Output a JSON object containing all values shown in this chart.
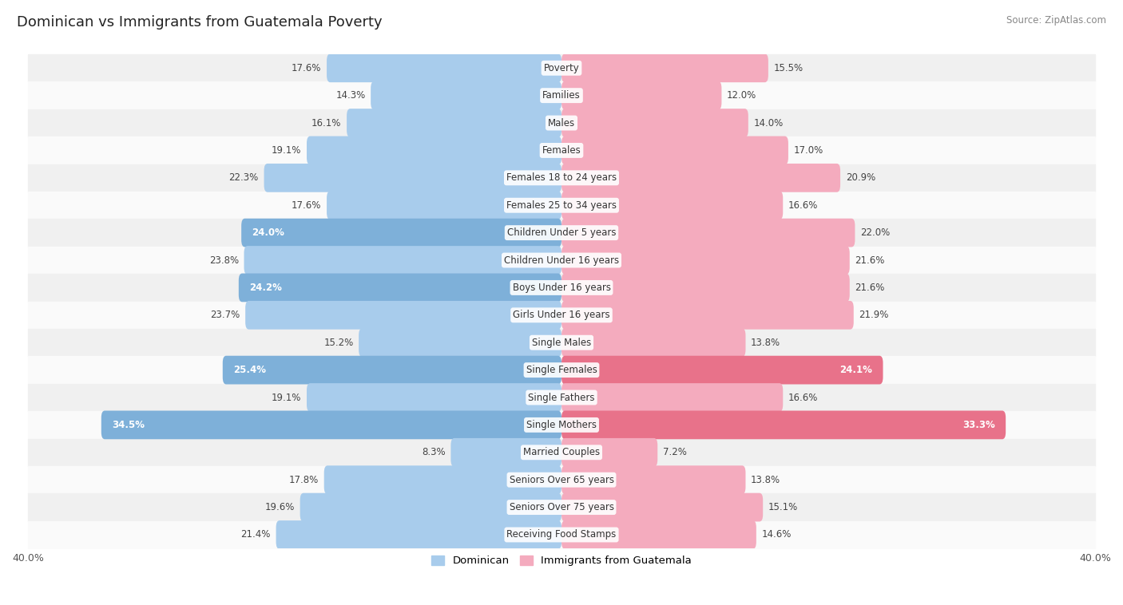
{
  "title": "Dominican vs Immigrants from Guatemala Poverty",
  "source": "Source: ZipAtlas.com",
  "categories": [
    "Poverty",
    "Families",
    "Males",
    "Females",
    "Females 18 to 24 years",
    "Females 25 to 34 years",
    "Children Under 5 years",
    "Children Under 16 years",
    "Boys Under 16 years",
    "Girls Under 16 years",
    "Single Males",
    "Single Females",
    "Single Fathers",
    "Single Mothers",
    "Married Couples",
    "Seniors Over 65 years",
    "Seniors Over 75 years",
    "Receiving Food Stamps"
  ],
  "dominican": [
    17.6,
    14.3,
    16.1,
    19.1,
    22.3,
    17.6,
    24.0,
    23.8,
    24.2,
    23.7,
    15.2,
    25.4,
    19.1,
    34.5,
    8.3,
    17.8,
    19.6,
    21.4
  ],
  "guatemala": [
    15.5,
    12.0,
    14.0,
    17.0,
    20.9,
    16.6,
    22.0,
    21.6,
    21.6,
    21.9,
    13.8,
    24.1,
    16.6,
    33.3,
    7.2,
    13.8,
    15.1,
    14.6
  ],
  "dominican_highlighted": [
    6,
    8,
    11,
    13
  ],
  "guatemala_highlighted": [
    11,
    13
  ],
  "bar_color_blue": "#A8CCEC",
  "bar_color_pink": "#F4ABBE",
  "bar_color_blue_highlight": "#7EB0D9",
  "bar_color_pink_highlight": "#E8728A",
  "bg_row_odd": "#F0F0F0",
  "bg_row_even": "#FAFAFA",
  "max_val": 40.0,
  "legend_dominican": "Dominican",
  "legend_guatemala": "Immigrants from Guatemala"
}
